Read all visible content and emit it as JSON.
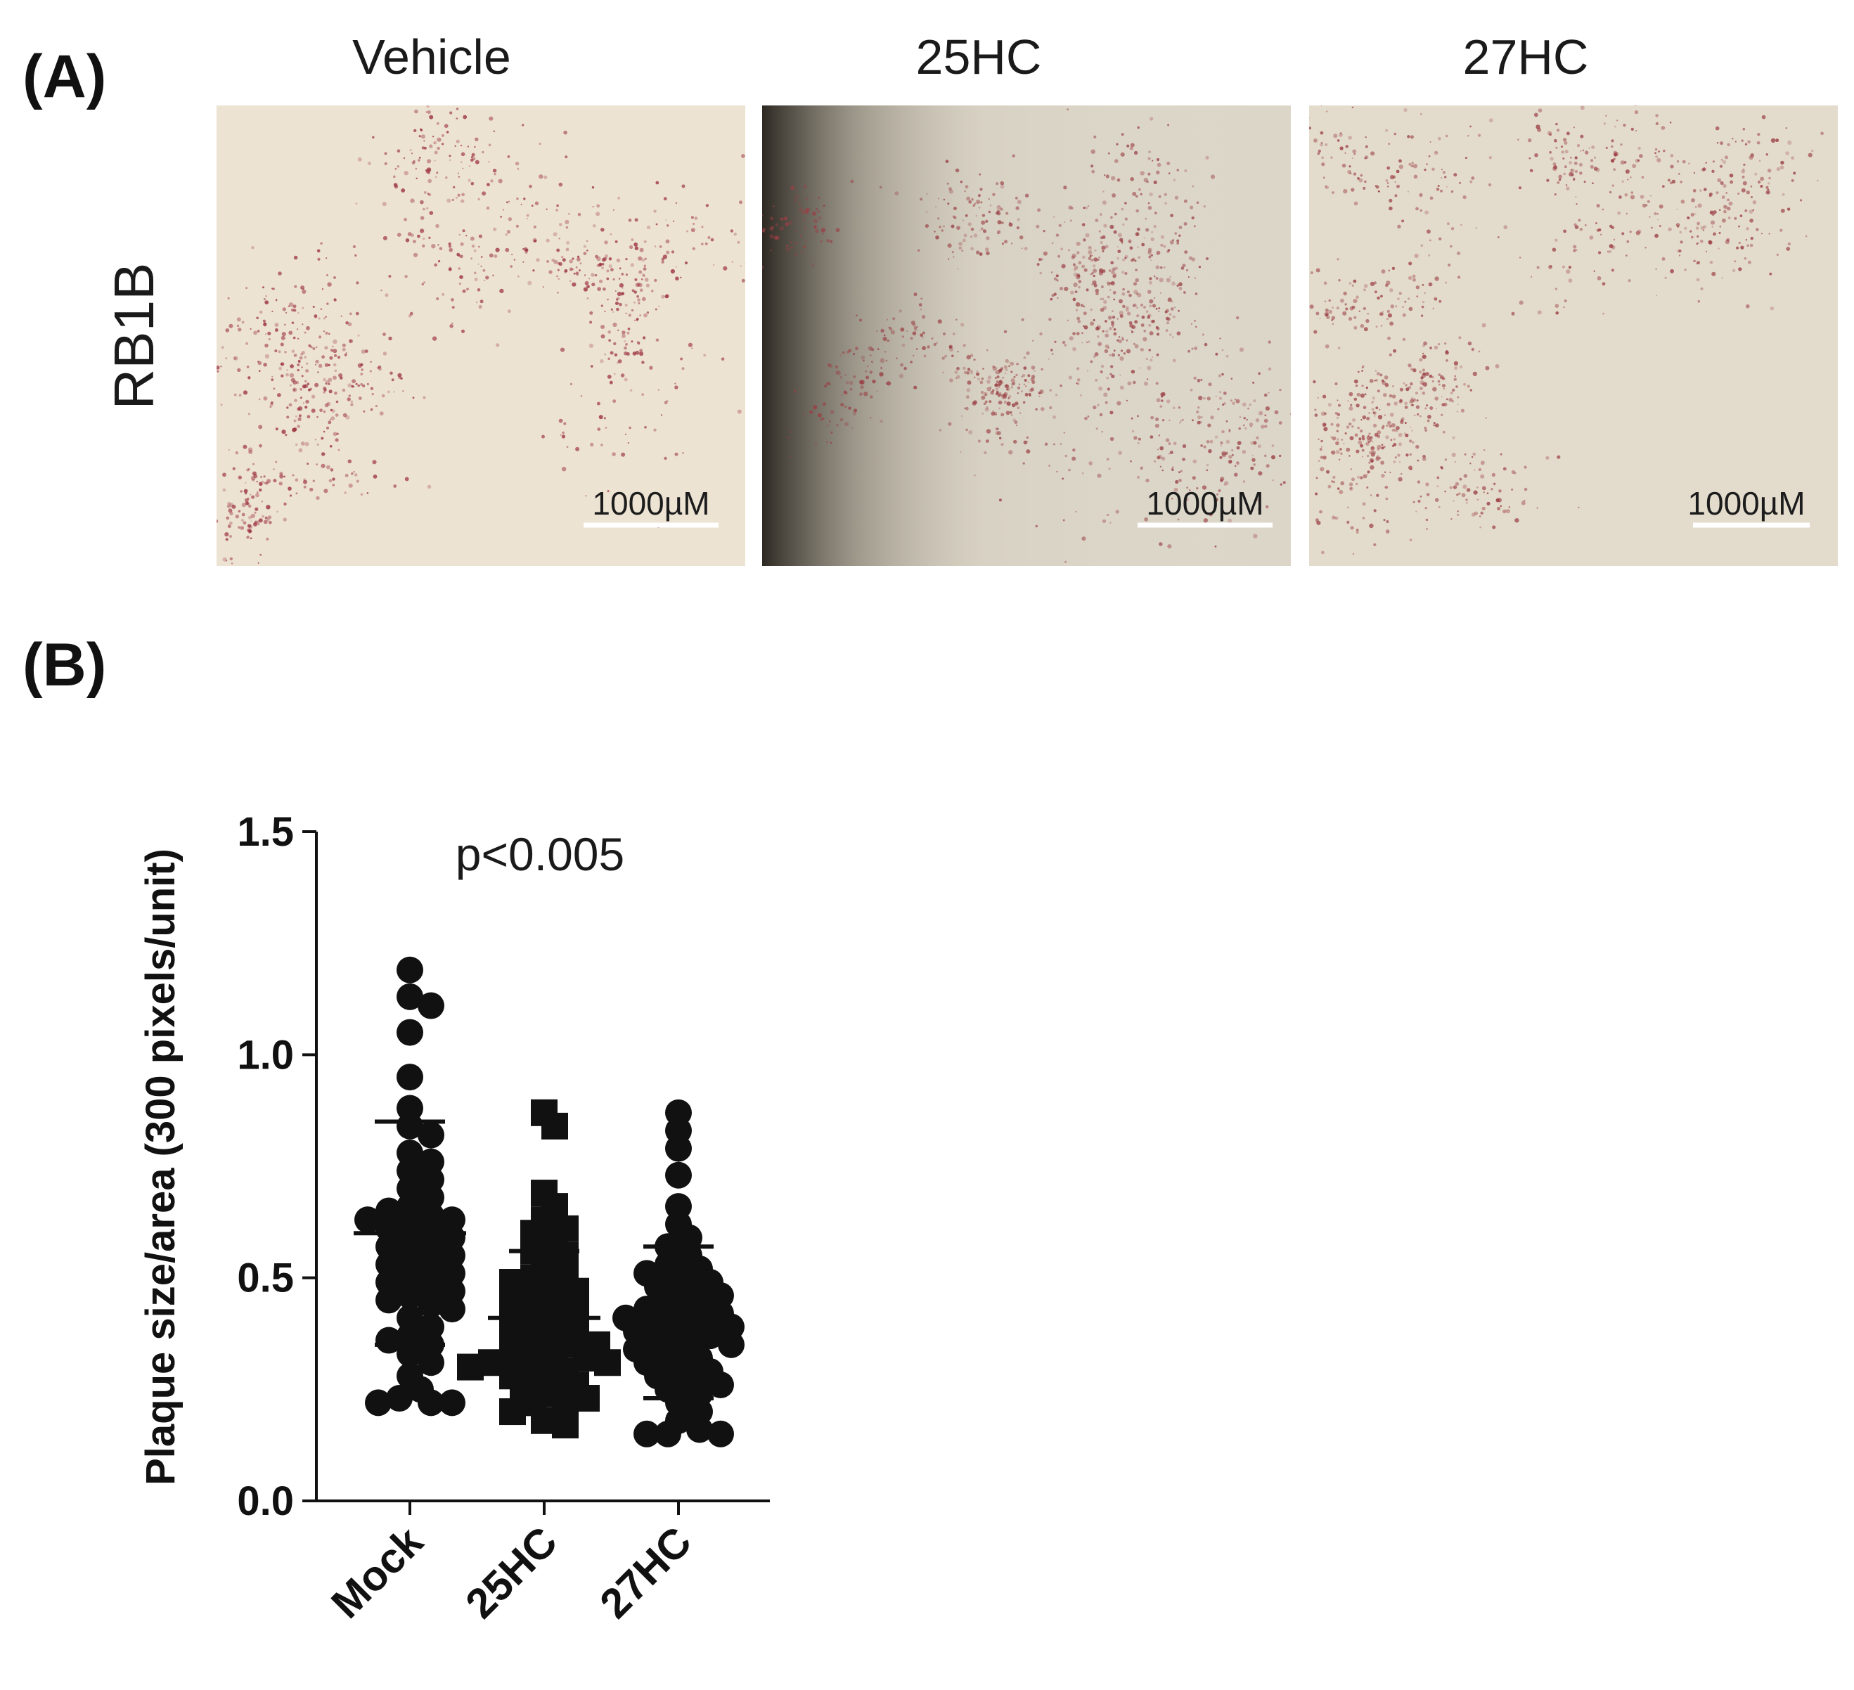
{
  "panel_a": {
    "letter": "(A)",
    "row_label": "RB1B",
    "columns": [
      {
        "title": "Vehicle",
        "scale_bar": "1000µM",
        "tone": "#ece3d3",
        "dot_color": "#9b2f3b",
        "vignette": false
      },
      {
        "title": "25HC",
        "scale_bar": "1000µM",
        "tone": "#dcd6c8",
        "dot_color": "#9a3f44",
        "vignette": true
      },
      {
        "title": "27HC",
        "scale_bar": "1000µM",
        "tone": "#e3dccd",
        "dot_color": "#9a3a40",
        "vignette": false
      }
    ]
  },
  "panel_b": {
    "letter": "(B)"
  },
  "chart_data": {
    "type": "scatter",
    "title": "",
    "annotation": "p<0.005",
    "ylabel": "Plaque size/area (300 pixels/unit)",
    "xlabel": "",
    "ylim": [
      0,
      1.5
    ],
    "yticks": [
      0.0,
      0.5,
      1.0,
      1.5
    ],
    "ytick_labels": [
      "0.0",
      "0.5",
      "1.0",
      "1.5"
    ],
    "categories": [
      "Mock",
      "25HC",
      "27HC"
    ],
    "series": [
      {
        "category": "Mock",
        "marker": "circle",
        "mean": 0.6,
        "sd": 0.25,
        "values": [
          1.19,
          1.13,
          1.11,
          1.05,
          0.95,
          0.88,
          0.84,
          0.82,
          0.78,
          0.76,
          0.74,
          0.72,
          0.7,
          0.68,
          0.66,
          0.65,
          0.64,
          0.63,
          0.63,
          0.62,
          0.61,
          0.6,
          0.59,
          0.58,
          0.57,
          0.56,
          0.55,
          0.54,
          0.53,
          0.52,
          0.51,
          0.5,
          0.49,
          0.48,
          0.47,
          0.46,
          0.45,
          0.44,
          0.43,
          0.41,
          0.39,
          0.37,
          0.36,
          0.35,
          0.33,
          0.31,
          0.28,
          0.25,
          0.23,
          0.22,
          0.22,
          0.22
        ]
      },
      {
        "category": "25HC",
        "marker": "square",
        "mean": 0.41,
        "sd": 0.15,
        "values": [
          0.87,
          0.84,
          0.69,
          0.66,
          0.63,
          0.61,
          0.6,
          0.58,
          0.56,
          0.55,
          0.53,
          0.51,
          0.5,
          0.49,
          0.48,
          0.47,
          0.46,
          0.45,
          0.44,
          0.43,
          0.42,
          0.41,
          0.4,
          0.39,
          0.38,
          0.37,
          0.36,
          0.35,
          0.35,
          0.34,
          0.33,
          0.32,
          0.32,
          0.31,
          0.31,
          0.3,
          0.3,
          0.29,
          0.28,
          0.27,
          0.26,
          0.25,
          0.24,
          0.23,
          0.22,
          0.21,
          0.2,
          0.18,
          0.17
        ]
      },
      {
        "category": "27HC",
        "marker": "circle",
        "mean": 0.4,
        "sd": 0.17,
        "values": [
          0.87,
          0.83,
          0.79,
          0.73,
          0.66,
          0.62,
          0.59,
          0.57,
          0.55,
          0.53,
          0.52,
          0.51,
          0.5,
          0.49,
          0.48,
          0.47,
          0.46,
          0.45,
          0.44,
          0.43,
          0.42,
          0.42,
          0.41,
          0.4,
          0.4,
          0.39,
          0.38,
          0.38,
          0.37,
          0.36,
          0.35,
          0.35,
          0.34,
          0.33,
          0.32,
          0.31,
          0.3,
          0.29,
          0.28,
          0.27,
          0.26,
          0.25,
          0.24,
          0.22,
          0.2,
          0.18,
          0.16,
          0.15,
          0.15,
          0.15
        ]
      }
    ]
  }
}
